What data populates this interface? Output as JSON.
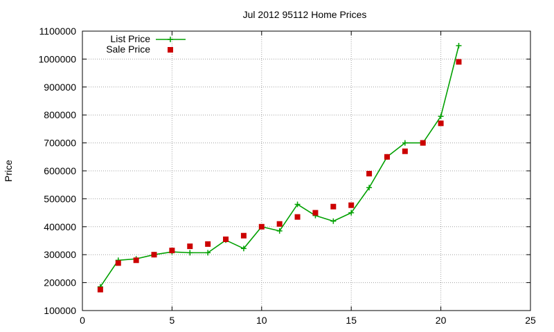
{
  "chart_data": {
    "type": "line",
    "title": "Jul 2012 95112 Home Prices",
    "xlabel": "",
    "ylabel": "Price",
    "xlim": [
      0,
      25
    ],
    "ylim": [
      100000,
      1100000
    ],
    "xticks": [
      0,
      5,
      10,
      15,
      20,
      25
    ],
    "yticks": [
      100000,
      200000,
      300000,
      400000,
      500000,
      600000,
      700000,
      800000,
      900000,
      1000000,
      1100000
    ],
    "grid": true,
    "legend_position": "top-left",
    "series": [
      {
        "name": "List Price",
        "style": "line-points",
        "marker": "plus",
        "color": "#00a000",
        "x": [
          1,
          2,
          3,
          4,
          5,
          6,
          7,
          8,
          9,
          10,
          11,
          12,
          13,
          14,
          15,
          16,
          17,
          18,
          19,
          20,
          21
        ],
        "y": [
          185000,
          280000,
          285000,
          300000,
          310000,
          307000,
          307000,
          352000,
          322000,
          400000,
          385000,
          480000,
          440000,
          420000,
          450000,
          540000,
          650000,
          700000,
          700000,
          795000,
          1048000
        ]
      },
      {
        "name": "Sale Price",
        "style": "points",
        "marker": "square",
        "color": "#cc0000",
        "x": [
          1,
          2,
          3,
          4,
          5,
          6,
          7,
          8,
          9,
          10,
          11,
          12,
          13,
          14,
          15,
          16,
          17,
          18,
          19,
          20,
          21
        ],
        "y": [
          175000,
          270000,
          280000,
          300000,
          315000,
          330000,
          338000,
          355000,
          368000,
          400000,
          410000,
          435000,
          450000,
          472000,
          477000,
          590000,
          650000,
          670000,
          700000,
          770000,
          990000
        ]
      }
    ]
  }
}
